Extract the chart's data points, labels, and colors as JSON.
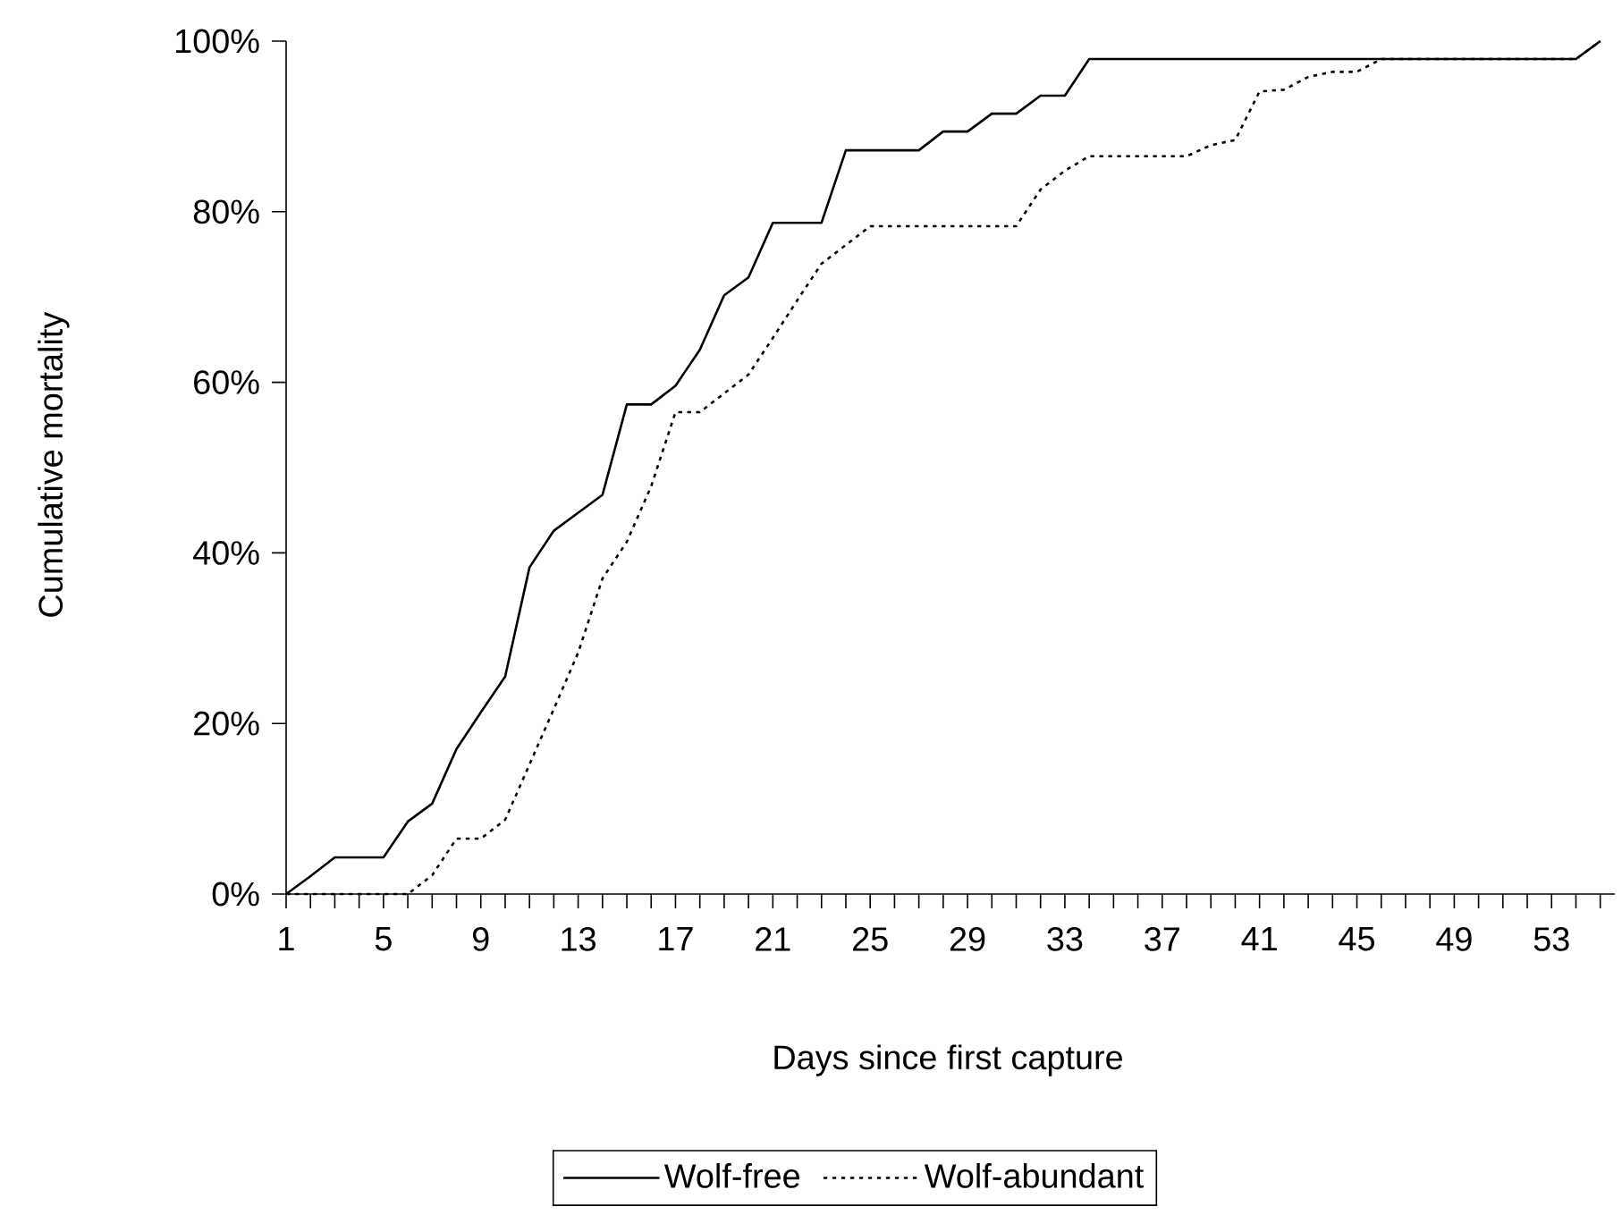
{
  "chart_data": {
    "type": "line",
    "xlabel": "Days since first capture",
    "ylabel": "Cumulative mortality",
    "categories": [
      "1",
      null,
      null,
      null,
      "5",
      null,
      null,
      null,
      "9",
      null,
      null,
      null,
      "13",
      null,
      null,
      null,
      "17",
      null,
      null,
      null,
      "21",
      null,
      null,
      null,
      "25",
      null,
      null,
      null,
      "29",
      null,
      null,
      null,
      "33",
      null,
      null,
      null,
      "37",
      null,
      null,
      null,
      "41",
      null,
      null,
      null,
      "45",
      null,
      null,
      null,
      "49",
      null,
      null,
      null,
      "53",
      null,
      null
    ],
    "series": [
      {
        "name": "Wolf-free",
        "color": "#000000",
        "line_style": "solid",
        "values": [
          0,
          2.1,
          4.3,
          4.3,
          4.3,
          8.5,
          10.6,
          17.0,
          21.3,
          25.5,
          38.3,
          42.6,
          44.7,
          46.8,
          57.4,
          57.4,
          59.6,
          63.8,
          70.2,
          72.3,
          78.7,
          78.7,
          78.7,
          87.2,
          87.2,
          87.2,
          87.2,
          89.4,
          89.4,
          91.5,
          91.5,
          93.6,
          93.6,
          97.9,
          97.9,
          97.9,
          97.9,
          97.9,
          97.9,
          97.9,
          97.9,
          97.9,
          97.9,
          97.9,
          97.9,
          97.9,
          97.9,
          97.9,
          97.9,
          97.9,
          97.9,
          97.9,
          97.9,
          97.9,
          100
        ]
      },
      {
        "name": "Wolf-abundant",
        "color": "#000000",
        "line_style": "dotted",
        "values": [
          0,
          0,
          0,
          0,
          0,
          0,
          2.2,
          6.5,
          6.5,
          8.7,
          15.2,
          21.7,
          28.3,
          37.0,
          41.3,
          47.8,
          56.5,
          56.5,
          58.7,
          60.9,
          65.2,
          69.6,
          73.9,
          76.1,
          78.3,
          78.3,
          78.3,
          78.3,
          78.3,
          78.3,
          78.3,
          82.6,
          84.8,
          86.5,
          86.5,
          86.5,
          86.5,
          86.5,
          87.8,
          88.4,
          94.1,
          94.3,
          95.8,
          96.4,
          96.4,
          97.9,
          97.9,
          97.9,
          97.9,
          97.9,
          97.9,
          97.9,
          97.9,
          97.9,
          100
        ]
      }
    ],
    "ylim": [
      0,
      100
    ],
    "yticks": [
      {
        "value": 0,
        "label": "0%"
      },
      {
        "value": 20,
        "label": "20%"
      },
      {
        "value": 40,
        "label": "40%"
      },
      {
        "value": 60,
        "label": "60%"
      },
      {
        "value": 80,
        "label": "80%"
      },
      {
        "value": 100,
        "label": "100%"
      }
    ],
    "grid": false,
    "legend": "bottom",
    "marker": "none"
  }
}
